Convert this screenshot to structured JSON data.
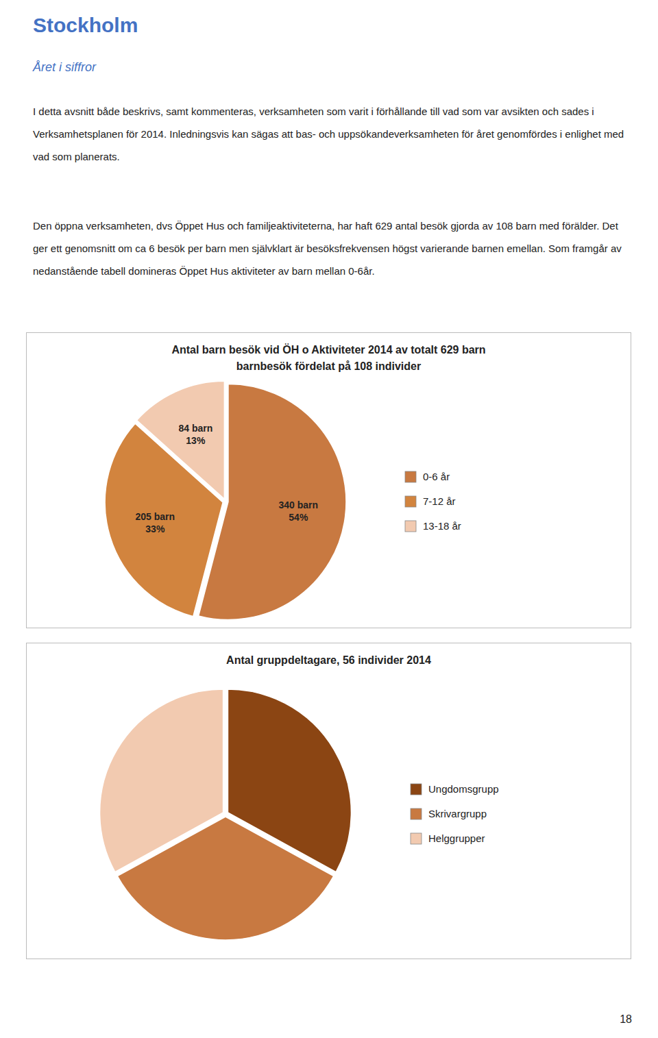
{
  "title": "Stockholm",
  "subtitle": "Året i siffror",
  "paragraphs": [
    "I detta avsnitt både beskrivs, samt kommenteras, verksamheten som varit i förhållande till vad som var avsikten och sades i Verksamhetsplanen för 2014. Inledningsvis kan sägas att bas- och uppsökandeverksamheten för året genomfördes i enlighet med vad som planerats.",
    "Den öppna verksamheten, dvs Öppet Hus och familjeaktiviteterna, har haft 629 antal besök gjorda av 108 barn med förälder. Det ger ett genomsnitt om ca 6 besök per barn men självklart är besöksfrekvensen högst varierande barnen emellan. Som framgår av nedanstående tabell domineras Öppet Hus aktiviteter av barn mellan 0-6år."
  ],
  "page_number": "18",
  "chart_data": [
    {
      "type": "pie",
      "title": "Antal barn besök vid ÖH o Aktiviteter 2014 av totalt 629 barn\nbarnbesök fördelat på 108 individer",
      "categories": [
        "0-6 år",
        "7-12 år",
        "13-18 år"
      ],
      "values": [
        340,
        205,
        84
      ],
      "value_labels": [
        "340 barn\n54%",
        "205 barn\n33%",
        "84 barn\n13%"
      ],
      "colors": [
        "#C87941",
        "#D2843E",
        "#F2CAB0"
      ],
      "data_labels": true,
      "legend": "right"
    },
    {
      "type": "pie",
      "title": "Antal gruppdeltagare, 56 individer 2014",
      "categories": [
        "Ungdomsgrupp",
        "Skrivargrupp",
        "Helggrupper"
      ],
      "values": [
        33,
        34,
        33
      ],
      "colors": [
        "#8B4513",
        "#C87941",
        "#F2CAB0"
      ],
      "data_labels": false,
      "legend": "right"
    }
  ]
}
